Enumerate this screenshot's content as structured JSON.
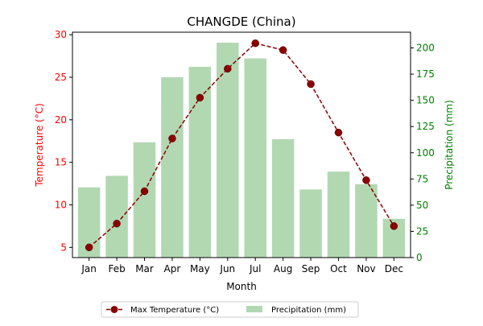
{
  "chart_data": {
    "type": "bar",
    "title": "CHANGDE (China)",
    "xlabel": "Month",
    "ylabel_left": "Temperature (°C)",
    "ylabel_right": "Precipitation (mm)",
    "categories": [
      "Jan",
      "Feb",
      "Mar",
      "Apr",
      "May",
      "Jun",
      "Jul",
      "Aug",
      "Sep",
      "Oct",
      "Nov",
      "Dec"
    ],
    "series": [
      {
        "name": "Max Temperature (°C)",
        "type": "line",
        "axis": "left",
        "color": "#8b0000",
        "line_style": "dashed",
        "marker": "circle",
        "values": [
          5.0,
          7.8,
          11.6,
          17.8,
          22.6,
          26.0,
          29.0,
          28.2,
          24.2,
          18.5,
          12.9,
          7.5
        ]
      },
      {
        "name": "Precipitation (mm)",
        "type": "bar",
        "axis": "right",
        "color": "#b2d8b2",
        "values": [
          67,
          78,
          110,
          172,
          182,
          205,
          190,
          113,
          65,
          82,
          70,
          37
        ]
      }
    ],
    "ylim_left": [
      3.8,
      30.3
    ],
    "ylim_right": [
      0,
      215
    ],
    "yticks_left": [
      "5",
      "10",
      "15",
      "20",
      "25",
      "30"
    ],
    "yticks_right": [
      "0",
      "25",
      "50",
      "75",
      "100",
      "125",
      "150",
      "175",
      "200"
    ],
    "left_axis_color": "#ff0000",
    "right_axis_color": "#008000",
    "grid": false,
    "legend_position": "bottom-center"
  }
}
